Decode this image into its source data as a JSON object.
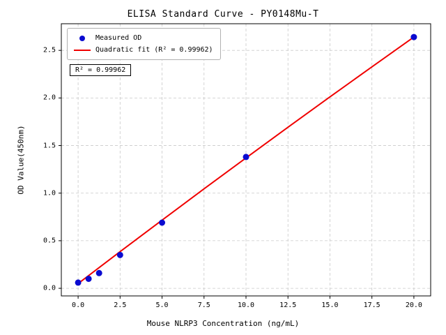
{
  "chart_data": {
    "type": "scatter",
    "title": "ELISA Standard Curve - PY0148Mu-T",
    "xlabel": "Mouse NLRP3 Concentration (ng/mL)",
    "ylabel": "OD Value(450nm)",
    "xlim": [
      -1,
      21
    ],
    "ylim": [
      -0.08,
      2.78
    ],
    "xticks": [
      0.0,
      2.5,
      5.0,
      7.5,
      10.0,
      12.5,
      15.0,
      17.5,
      20.0
    ],
    "yticks": [
      0.0,
      0.5,
      1.0,
      1.5,
      2.0,
      2.5
    ],
    "grid": true,
    "legend_position": "upper left",
    "annotation": "R² = 0.99962",
    "colors": {
      "scatter": "#0b0bd0",
      "fit_line": "#f00000",
      "grid": "#c9c9c9",
      "axis": "#000000"
    },
    "series": [
      {
        "name": "Measured OD",
        "kind": "scatter",
        "color": "#0b0bd0",
        "x": [
          0,
          0.625,
          1.25,
          2.5,
          5,
          10,
          20
        ],
        "y": [
          0.06,
          0.1,
          0.16,
          0.35,
          0.69,
          1.38,
          2.64
        ]
      },
      {
        "name": "Quadratic fit (R² = 0.99962)",
        "kind": "line",
        "color": "#f00000",
        "x": [
          0,
          2.5,
          5,
          7.5,
          10,
          12.5,
          15,
          17.5,
          20
        ],
        "y": [
          0.05,
          0.385,
          0.716,
          1.045,
          1.37,
          1.692,
          2.011,
          2.327,
          2.64
        ]
      }
    ]
  }
}
